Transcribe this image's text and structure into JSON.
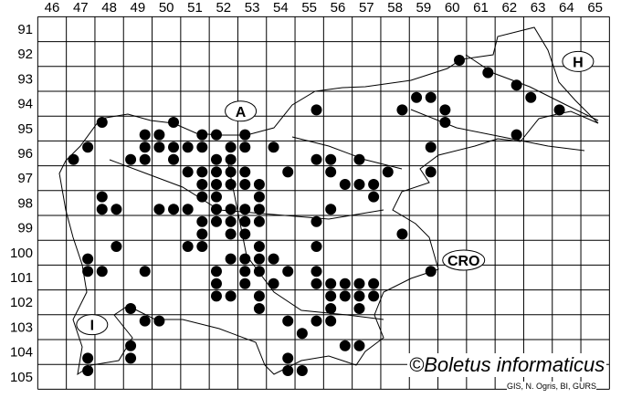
{
  "map": {
    "columns": [
      46,
      47,
      48,
      49,
      50,
      51,
      52,
      53,
      54,
      55,
      56,
      57,
      58,
      59,
      60,
      61,
      62,
      63,
      64,
      65
    ],
    "rows": [
      91,
      92,
      93,
      94,
      95,
      96,
      97,
      98,
      99,
      100,
      101,
      102,
      103,
      104,
      105
    ],
    "country_labels": [
      {
        "text": "A",
        "x": 52.6,
        "y": 94.3
      },
      {
        "text": "H",
        "x": 64.4,
        "y": 92.3
      },
      {
        "text": "I",
        "x": 47.4,
        "y": 102.9
      },
      {
        "text": "CRO",
        "x": 60.4,
        "y": 100.3
      }
    ],
    "occurrence_rows": [
      {
        "y": 92.25,
        "x": [
          60.25
        ]
      },
      {
        "y": 92.75,
        "x": [
          61.25
        ]
      },
      {
        "y": 93.25,
        "x": [
          62.25
        ]
      },
      {
        "y": 93.75,
        "x": [
          58.75,
          59.25,
          62.75
        ]
      },
      {
        "y": 94.25,
        "x": [
          55.25,
          58.25,
          59.75,
          63.75
        ]
      },
      {
        "y": 94.75,
        "x": [
          47.75,
          50.25,
          59.75
        ]
      },
      {
        "y": 95.25,
        "x": [
          49.25,
          49.75,
          51.25,
          51.75,
          52.75,
          62.25
        ]
      },
      {
        "y": 95.75,
        "x": [
          47.25,
          49.25,
          49.75,
          50.25,
          50.75,
          51.25,
          52.25,
          52.75,
          53.75,
          59.25
        ]
      },
      {
        "y": 96.25,
        "x": [
          46.75,
          48.75,
          49.25,
          50.25,
          51.75,
          52.25,
          55.25,
          55.75,
          56.75
        ]
      },
      {
        "y": 96.75,
        "x": [
          50.75,
          51.25,
          51.75,
          52.25,
          52.75,
          54.25,
          55.75,
          57.75,
          59.25
        ]
      },
      {
        "y": 97.25,
        "x": [
          51.25,
          51.75,
          52.25,
          52.75,
          53.25,
          56.25,
          56.75,
          57.25
        ]
      },
      {
        "y": 97.75,
        "x": [
          47.75,
          51.25,
          51.75,
          53.25,
          57.25
        ]
      },
      {
        "y": 98.25,
        "x": [
          47.75,
          48.25,
          49.75,
          50.25,
          50.75,
          51.75,
          52.25,
          52.75,
          53.25,
          55.75
        ]
      },
      {
        "y": 98.75,
        "x": [
          51.25,
          51.75,
          52.25,
          52.75,
          53.25,
          55.25
        ]
      },
      {
        "y": 99.25,
        "x": [
          51.25,
          52.25,
          52.75,
          58.25
        ]
      },
      {
        "y": 99.75,
        "x": [
          48.25,
          50.75,
          51.25,
          53.25,
          55.25
        ]
      },
      {
        "y": 100.25,
        "x": [
          47.25,
          52.25,
          52.75,
          53.25,
          53.75
        ]
      },
      {
        "y": 100.75,
        "x": [
          47.25,
          47.75,
          49.25,
          51.75,
          52.75,
          53.25,
          54.25,
          55.25,
          59.25
        ]
      },
      {
        "y": 101.25,
        "x": [
          51.75,
          52.75,
          53.75,
          55.25,
          55.75,
          56.25,
          56.75,
          57.25
        ]
      },
      {
        "y": 101.75,
        "x": [
          51.75,
          52.25,
          53.25,
          55.75,
          56.25,
          56.75,
          57.25
        ]
      },
      {
        "y": 102.25,
        "x": [
          48.75,
          53.25,
          55.75,
          56.75
        ]
      },
      {
        "y": 102.75,
        "x": [
          49.25,
          49.75,
          54.25,
          55.25,
          55.75
        ]
      },
      {
        "y": 103.25,
        "x": [
          54.75
        ]
      },
      {
        "y": 103.75,
        "x": [
          48.75,
          56.25,
          56.75
        ]
      },
      {
        "y": 104.25,
        "x": [
          47.25,
          48.75,
          54.25
        ]
      },
      {
        "y": 104.75,
        "x": [
          47.25,
          54.25,
          54.75
        ]
      }
    ],
    "colors": {
      "dot": "#000000",
      "grid": "#000000",
      "border": "#000000",
      "background": "#ffffff"
    }
  },
  "copyright": "©Boletus informaticus",
  "credit": "GIS, N. Ogris, BI, GURS"
}
